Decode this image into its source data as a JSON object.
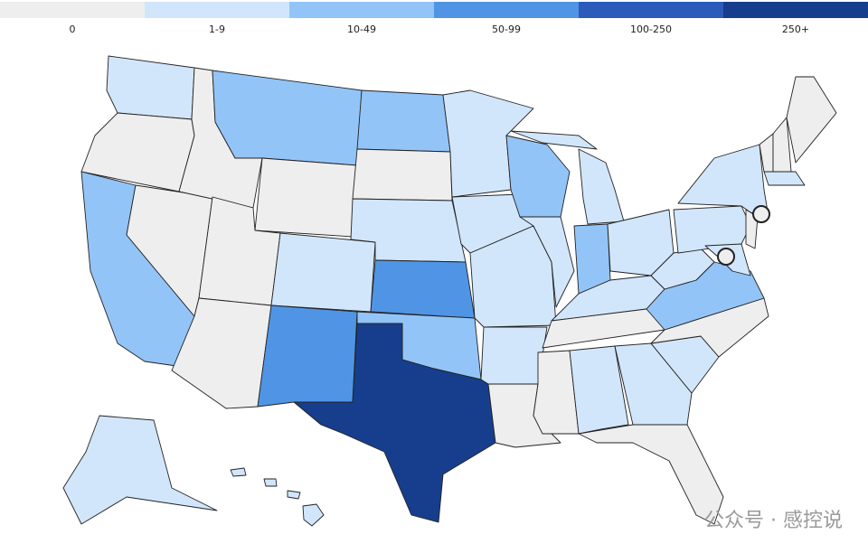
{
  "legend": [
    {
      "label": "0",
      "color": "#eeeeee"
    },
    {
      "label": "1-9",
      "color": "#d2e6fb"
    },
    {
      "label": "10-49",
      "color": "#93c4f7"
    },
    {
      "label": "50-99",
      "color": "#5095e5"
    },
    {
      "label": "100-250",
      "color": "#2c5bba"
    },
    {
      "label": "250+",
      "color": "#173e8c"
    }
  ],
  "states": [
    1,
    0,
    2,
    0,
    0,
    2,
    0,
    0,
    0,
    1,
    3,
    2,
    0,
    1,
    3,
    2,
    5,
    1,
    1,
    1,
    1,
    0,
    2,
    1,
    1,
    2,
    1,
    1,
    0,
    0,
    1,
    1,
    0,
    1,
    0,
    2,
    1,
    1,
    1,
    1,
    0,
    0,
    0,
    0,
    1,
    1,
    1
  ],
  "watermark": "公众号 · 感控说"
}
